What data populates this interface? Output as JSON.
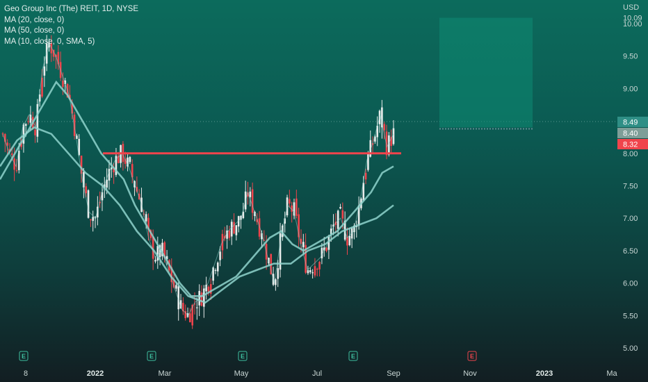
{
  "legend": {
    "title": "Geo Group Inc (The) REIT, 1D, NYSE",
    "ma20": "MA (20, close, 0)",
    "ma50": "MA (50, close, 0)",
    "ma10": "MA (10, close, 0, SMA, 5)"
  },
  "currency": "USD",
  "colors": {
    "up": "#e8eceb",
    "down": "#f0444c",
    "ma": "#8fd3cc",
    "level_line": "#f0444c",
    "projection_box": "#0f8a72",
    "earnings_past": "#3fc0a0",
    "earnings_future": "#f0444c"
  },
  "price_tags": [
    {
      "label": "8.49",
      "value": 8.49,
      "color": "#2f8f86"
    },
    {
      "label": "8.40",
      "value": 8.4,
      "color": "#7e9e98"
    },
    {
      "label": "8.32",
      "value": 8.32,
      "color": "#f0444c"
    }
  ],
  "chart_data": {
    "type": "candlestick",
    "symbol": "GEO",
    "exchange": "NYSE",
    "interval": "1D",
    "ylim": [
      4.9,
      10.1
    ],
    "yticks": [
      "10.00",
      "9.50",
      "9.00",
      "8.50",
      "8.00",
      "7.50",
      "7.00",
      "6.50",
      "6.00",
      "5.50",
      "5.00"
    ],
    "ytick_values": [
      10.0,
      9.5,
      9.0,
      8.5,
      8.0,
      7.5,
      7.0,
      6.5,
      6.0,
      5.5,
      5.0
    ],
    "y_top_partial_label": "10.09",
    "xticks": [
      "8",
      "2022",
      "Mar",
      "May",
      "Jul",
      "Sep",
      "Nov",
      "2023",
      "Ma"
    ],
    "xtick_bold": [
      false,
      true,
      false,
      false,
      false,
      false,
      false,
      true,
      false
    ],
    "resistance_level": 8.0,
    "last_price": 8.32,
    "projection_box": {
      "top": 10.09,
      "bottom": 8.4
    },
    "earnings_markers": [
      {
        "label": "E",
        "status": "past"
      },
      {
        "label": "E",
        "status": "past"
      },
      {
        "label": "E",
        "status": "past"
      },
      {
        "label": "E",
        "status": "past"
      },
      {
        "label": "E",
        "status": "upcoming"
      }
    ],
    "close_path": [
      8.3,
      8.0,
      7.8,
      8.4,
      8.6,
      8.4,
      9.3,
      9.7,
      9.5,
      9.2,
      8.9,
      8.3,
      7.6,
      7.1,
      7.0,
      7.4,
      7.7,
      7.9,
      8.0,
      7.8,
      7.5,
      7.2,
      6.7,
      6.4,
      6.5,
      6.2,
      5.9,
      5.6,
      5.5,
      5.7,
      5.8,
      6.0,
      6.3,
      6.6,
      6.8,
      6.9,
      7.0,
      7.4,
      7.1,
      6.8,
      6.4,
      6.0,
      6.7,
      7.2,
      7.1,
      6.6,
      6.2,
      6.3,
      6.4,
      6.6,
      6.9,
      7.0,
      6.7,
      6.8,
      7.3,
      7.9,
      8.2,
      8.6,
      8.1,
      8.3
    ],
    "ma_short_path": [
      7.6,
      7.9,
      8.2,
      8.5,
      8.8,
      9.1,
      8.9,
      8.6,
      8.3,
      8.0,
      7.8,
      7.6,
      7.2,
      6.9,
      6.6,
      6.3,
      6.0,
      5.8,
      5.8,
      5.9,
      6.0,
      6.1,
      6.3,
      6.5,
      6.7,
      6.8,
      6.6,
      6.5,
      6.6,
      6.7,
      6.8,
      7.0,
      7.2,
      7.4,
      7.7,
      7.8
    ],
    "ma_long_path": [
      7.8,
      8.2,
      8.4,
      8.3,
      8.0,
      7.7,
      7.5,
      7.2,
      6.8,
      6.5,
      6.1,
      5.8,
      5.7,
      5.9,
      6.1,
      6.2,
      6.3,
      6.3,
      6.5,
      6.6,
      6.8,
      6.9,
      7.0,
      7.2
    ],
    "bullish_days": [
      10,
      12,
      15,
      20,
      27,
      33,
      35,
      37,
      47,
      49,
      55,
      57,
      60,
      62,
      66,
      68,
      71,
      76,
      84,
      87,
      93,
      97,
      103,
      105,
      109,
      112,
      117,
      118,
      121,
      126,
      130,
      133,
      139,
      142,
      146,
      148,
      150,
      151,
      155,
      161,
      164
    ],
    "bearish_days": [
      3,
      8,
      17,
      23,
      31,
      42,
      52,
      58,
      64,
      74,
      79,
      82,
      90,
      95,
      100,
      114,
      124,
      135,
      137,
      144,
      157,
      166
    ]
  }
}
